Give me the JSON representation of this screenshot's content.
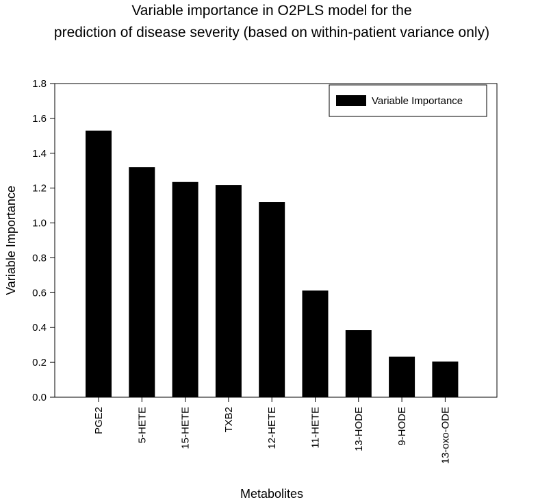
{
  "chart_data": {
    "type": "bar",
    "title_lines": [
      "Variable importance in O2PLS model for the",
      "prediction of disease severity (based on within-patient variance only)"
    ],
    "xlabel": "Metabolites",
    "ylabel": "Variable Importance",
    "ylim": [
      0,
      1.8
    ],
    "yticks": [
      "0.0",
      "0.2",
      "0.4",
      "0.6",
      "0.8",
      "1.0",
      "1.2",
      "1.4",
      "1.6",
      "1.8"
    ],
    "categories": [
      "PGE2",
      "5-HETE",
      "15-HETE",
      "TXB2",
      "12-HETE",
      "11-HETE",
      "13-HODE",
      "9-HODE",
      "13-oxo-ODE"
    ],
    "series": [
      {
        "name": "Variable Importance",
        "color": "#000000",
        "values": [
          1.53,
          1.32,
          1.235,
          1.218,
          1.12,
          0.612,
          0.385,
          0.233,
          0.205
        ]
      }
    ],
    "legend_position": "top-right",
    "grid": false
  }
}
